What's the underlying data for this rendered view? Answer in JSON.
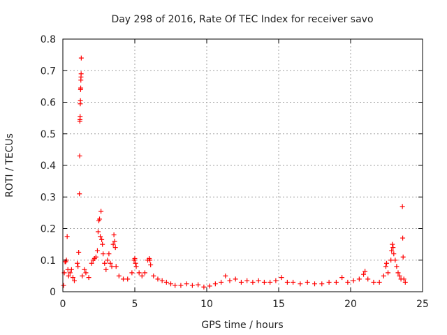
{
  "chart_data": {
    "type": "scatter",
    "title": "Day 298 of 2016, Rate Of TEC Index for receiver savo",
    "xlabel": "GPS time / hours",
    "ylabel": "ROTI / TECUs",
    "xlim": [
      0,
      25
    ],
    "ylim": [
      0,
      0.8
    ],
    "x_ticks": [
      "0",
      "5",
      "10",
      "15",
      "20",
      "25"
    ],
    "y_ticks": [
      "0",
      "0.1",
      "0.2",
      "0.3",
      "0.4",
      "0.5",
      "0.6",
      "0.7",
      "0.8"
    ],
    "grid": true,
    "marker": "+",
    "series": [
      {
        "name": "ROTI",
        "color": "#ff0000",
        "points": [
          [
            0.05,
            0.02
          ],
          [
            0.1,
            0.06
          ],
          [
            0.15,
            0.095
          ],
          [
            0.2,
            0.095
          ],
          [
            0.25,
            0.1
          ],
          [
            0.3,
            0.175
          ],
          [
            0.35,
            0.07
          ],
          [
            0.4,
            0.05
          ],
          [
            0.5,
            0.06
          ],
          [
            0.6,
            0.07
          ],
          [
            0.7,
            0.045
          ],
          [
            0.8,
            0.035
          ],
          [
            1.0,
            0.09
          ],
          [
            1.05,
            0.08
          ],
          [
            1.1,
            0.125
          ],
          [
            1.15,
            0.31
          ],
          [
            1.17,
            0.43
          ],
          [
            1.18,
            0.54
          ],
          [
            1.19,
            0.545
          ],
          [
            1.2,
            0.555
          ],
          [
            1.21,
            0.595
          ],
          [
            1.22,
            0.605
          ],
          [
            1.23,
            0.64
          ],
          [
            1.24,
            0.645
          ],
          [
            1.25,
            0.67
          ],
          [
            1.26,
            0.68
          ],
          [
            1.27,
            0.69
          ],
          [
            1.28,
            0.74
          ],
          [
            1.35,
            0.05
          ],
          [
            1.5,
            0.07
          ],
          [
            1.6,
            0.06
          ],
          [
            1.8,
            0.045
          ],
          [
            2.0,
            0.09
          ],
          [
            2.1,
            0.1
          ],
          [
            2.2,
            0.105
          ],
          [
            2.3,
            0.11
          ],
          [
            2.4,
            0.13
          ],
          [
            2.45,
            0.19
          ],
          [
            2.5,
            0.225
          ],
          [
            2.55,
            0.23
          ],
          [
            2.6,
            0.175
          ],
          [
            2.65,
            0.255
          ],
          [
            2.7,
            0.165
          ],
          [
            2.75,
            0.15
          ],
          [
            2.8,
            0.12
          ],
          [
            2.9,
            0.09
          ],
          [
            3.0,
            0.07
          ],
          [
            3.1,
            0.1
          ],
          [
            3.2,
            0.12
          ],
          [
            3.3,
            0.09
          ],
          [
            3.4,
            0.08
          ],
          [
            3.5,
            0.15
          ],
          [
            3.55,
            0.18
          ],
          [
            3.6,
            0.16
          ],
          [
            3.65,
            0.14
          ],
          [
            3.7,
            0.08
          ],
          [
            3.9,
            0.05
          ],
          [
            4.2,
            0.04
          ],
          [
            4.5,
            0.04
          ],
          [
            4.8,
            0.06
          ],
          [
            4.95,
            0.1
          ],
          [
            5.0,
            0.105
          ],
          [
            5.05,
            0.09
          ],
          [
            5.1,
            0.08
          ],
          [
            5.3,
            0.06
          ],
          [
            5.5,
            0.05
          ],
          [
            5.7,
            0.06
          ],
          [
            5.9,
            0.1
          ],
          [
            6.0,
            0.105
          ],
          [
            6.05,
            0.1
          ],
          [
            6.1,
            0.085
          ],
          [
            6.3,
            0.05
          ],
          [
            6.6,
            0.04
          ],
          [
            6.9,
            0.035
          ],
          [
            7.2,
            0.03
          ],
          [
            7.5,
            0.025
          ],
          [
            7.8,
            0.02
          ],
          [
            8.2,
            0.02
          ],
          [
            8.6,
            0.025
          ],
          [
            9.0,
            0.02
          ],
          [
            9.4,
            0.022
          ],
          [
            9.8,
            0.015
          ],
          [
            10.2,
            0.018
          ],
          [
            10.6,
            0.025
          ],
          [
            11.0,
            0.03
          ],
          [
            11.3,
            0.05
          ],
          [
            11.6,
            0.035
          ],
          [
            12.0,
            0.04
          ],
          [
            12.4,
            0.03
          ],
          [
            12.8,
            0.035
          ],
          [
            13.2,
            0.03
          ],
          [
            13.6,
            0.035
          ],
          [
            14.0,
            0.03
          ],
          [
            14.4,
            0.03
          ],
          [
            14.8,
            0.035
          ],
          [
            15.2,
            0.045
          ],
          [
            15.6,
            0.03
          ],
          [
            16.0,
            0.03
          ],
          [
            16.5,
            0.025
          ],
          [
            17.0,
            0.03
          ],
          [
            17.5,
            0.025
          ],
          [
            18.0,
            0.025
          ],
          [
            18.5,
            0.03
          ],
          [
            19.0,
            0.03
          ],
          [
            19.4,
            0.045
          ],
          [
            19.8,
            0.03
          ],
          [
            20.2,
            0.035
          ],
          [
            20.6,
            0.04
          ],
          [
            20.9,
            0.055
          ],
          [
            21.0,
            0.065
          ],
          [
            21.2,
            0.04
          ],
          [
            21.6,
            0.03
          ],
          [
            22.0,
            0.03
          ],
          [
            22.3,
            0.05
          ],
          [
            22.45,
            0.08
          ],
          [
            22.5,
            0.09
          ],
          [
            22.6,
            0.06
          ],
          [
            22.8,
            0.1
          ],
          [
            22.85,
            0.13
          ],
          [
            22.9,
            0.15
          ],
          [
            22.95,
            0.14
          ],
          [
            23.0,
            0.12
          ],
          [
            23.1,
            0.1
          ],
          [
            23.2,
            0.08
          ],
          [
            23.3,
            0.06
          ],
          [
            23.4,
            0.05
          ],
          [
            23.5,
            0.04
          ],
          [
            23.6,
            0.27
          ],
          [
            23.62,
            0.17
          ],
          [
            23.65,
            0.11
          ],
          [
            23.7,
            0.04
          ],
          [
            23.8,
            0.03
          ]
        ]
      }
    ]
  }
}
